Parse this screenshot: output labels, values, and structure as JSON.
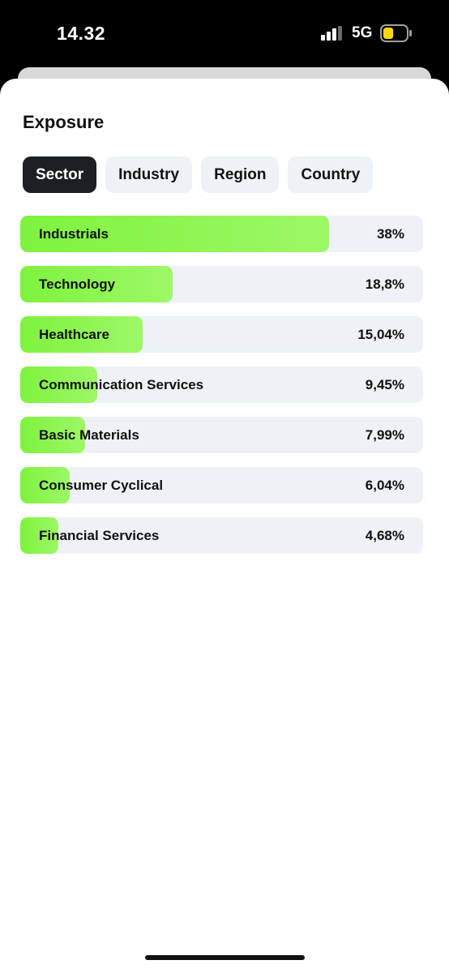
{
  "status_bar": {
    "time": "14.32",
    "network": "5G",
    "signal_bars_filled": 3,
    "signal_bars_total": 4,
    "battery_level": 0.25,
    "battery_color": "#ffd60a"
  },
  "card": {
    "title": "Exposure"
  },
  "tabs": [
    {
      "label": "Sector",
      "active": true
    },
    {
      "label": "Industry",
      "active": false
    },
    {
      "label": "Region",
      "active": false
    },
    {
      "label": "Country",
      "active": false
    }
  ],
  "accent_color": "#7ef23d",
  "exposure": [
    {
      "label": "Industrials",
      "value_text": "38%",
      "value": 38
    },
    {
      "label": "Technology",
      "value_text": "18,8%",
      "value": 18.8
    },
    {
      "label": "Healthcare",
      "value_text": "15,04%",
      "value": 15.04
    },
    {
      "label": "Communication Services",
      "value_text": "9,45%",
      "value": 9.45
    },
    {
      "label": "Basic Materials",
      "value_text": "7,99%",
      "value": 7.99
    },
    {
      "label": "Consumer Cyclical",
      "value_text": "6,04%",
      "value": 6.04
    },
    {
      "label": "Financial Services",
      "value_text": "4,68%",
      "value": 4.68
    }
  ]
}
